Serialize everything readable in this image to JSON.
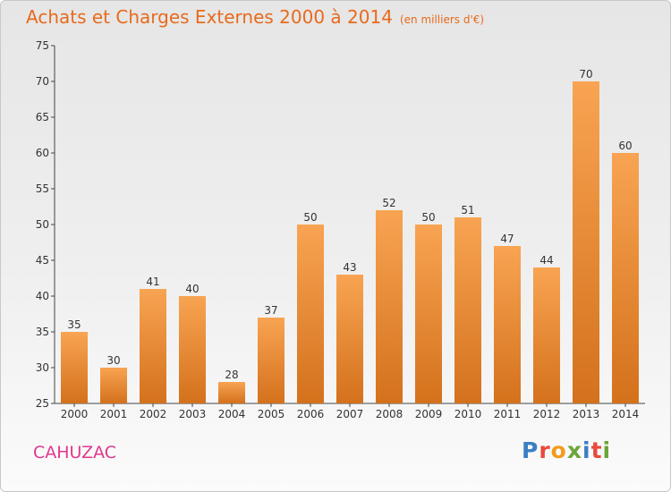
{
  "title": "Achats et Charges Externes 2000 à 2014",
  "subtitle": "(en milliers d'€)",
  "location": "CAHUZAC",
  "logo": {
    "letters": [
      "P",
      "r",
      "o",
      "x",
      "i",
      "t",
      "i"
    ],
    "colors": [
      "#3a7fc4",
      "#e84a3c",
      "#f29b1d",
      "#6aa53a",
      "#3a7fc4",
      "#e84a3c",
      "#6aa53a"
    ]
  },
  "colors": {
    "bar_light": "#f8a452",
    "bar_dark": "#d4711c",
    "title": "#e86a1c",
    "location": "#e0388e"
  },
  "chart_data": {
    "type": "bar",
    "categories": [
      "2000",
      "2001",
      "2002",
      "2003",
      "2004",
      "2005",
      "2006",
      "2007",
      "2008",
      "2009",
      "2010",
      "2011",
      "2012",
      "2013",
      "2014"
    ],
    "values": [
      35,
      30,
      41,
      40,
      28,
      37,
      50,
      43,
      52,
      50,
      51,
      47,
      44,
      70,
      60
    ],
    "ylim": [
      25,
      75
    ],
    "yticks": [
      25,
      30,
      35,
      40,
      45,
      50,
      55,
      60,
      65,
      70,
      75
    ],
    "grid": false
  }
}
